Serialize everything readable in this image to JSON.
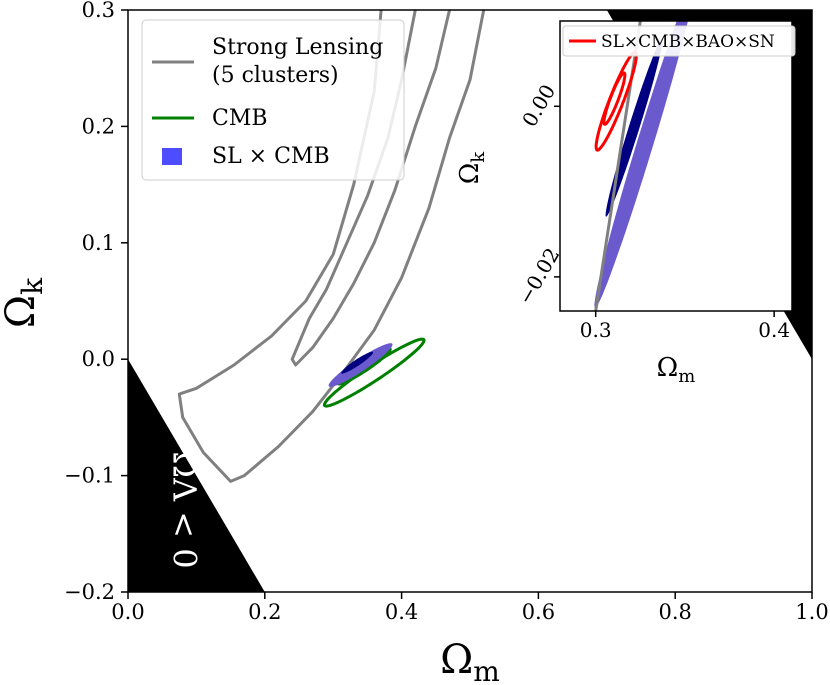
{
  "chart_data": [
    {
      "type": "contour",
      "title": "",
      "xlabel": "Ω",
      "xlabel_sub": "m",
      "ylabel": "Ω",
      "ylabel_sub": "k",
      "xlim": [
        0.0,
        1.0
      ],
      "ylim": [
        -0.2,
        0.3
      ],
      "xticks": [
        0.0,
        0.2,
        0.4,
        0.6,
        0.8,
        1.0
      ],
      "xtick_labels": [
        "0.0",
        "0.2",
        "0.4",
        "0.6",
        "0.8",
        "1.0"
      ],
      "yticks": [
        -0.2,
        -0.1,
        0.0,
        0.1,
        0.2,
        0.3
      ],
      "ytick_labels": [
        "−0.2",
        "−0.1",
        "0.0",
        "0.1",
        "0.2",
        "0.3"
      ],
      "legend": {
        "position": "top-left",
        "entries": [
          {
            "label_line1": "Strong Lensing",
            "label_line2": "(5 clusters)",
            "style": "line",
            "color": "#808080"
          },
          {
            "label": "CMB",
            "style": "line",
            "color": "#008000"
          },
          {
            "label": "SL × CMB",
            "style": "patch",
            "color": "#4d4dff"
          }
        ]
      },
      "annotation": {
        "text": "ΩΛ < 0",
        "region": "forbidden, lower-left corner"
      },
      "series": [
        {
          "name": "Strong Lensing outer contour",
          "color": "#808080",
          "points": [
            [
              0.37,
              0.3
            ],
            [
              0.36,
              0.23
            ],
            [
              0.33,
              0.15
            ],
            [
              0.3,
              0.09
            ],
            [
              0.26,
              0.05
            ],
            [
              0.21,
              0.02
            ],
            [
              0.155,
              -0.005
            ],
            [
              0.1,
              -0.025
            ],
            [
              0.075,
              -0.03
            ],
            [
              0.08,
              -0.05
            ],
            [
              0.11,
              -0.08
            ],
            [
              0.15,
              -0.105
            ],
            [
              0.17,
              -0.1
            ],
            [
              0.22,
              -0.075
            ],
            [
              0.27,
              -0.045
            ],
            [
              0.31,
              -0.015
            ],
            [
              0.36,
              0.025
            ],
            [
              0.4,
              0.07
            ],
            [
              0.44,
              0.13
            ],
            [
              0.47,
              0.19
            ],
            [
              0.5,
              0.24
            ],
            [
              0.52,
              0.3
            ]
          ]
        },
        {
          "name": "Strong Lensing inner contour",
          "color": "#808080",
          "points": [
            [
              0.42,
              0.3
            ],
            [
              0.4,
              0.24
            ],
            [
              0.38,
              0.19
            ],
            [
              0.35,
              0.14
            ],
            [
              0.32,
              0.1
            ],
            [
              0.29,
              0.06
            ],
            [
              0.265,
              0.035
            ],
            [
              0.24,
              0.0
            ],
            [
              0.245,
              -0.005
            ],
            [
              0.27,
              0.01
            ],
            [
              0.3,
              0.035
            ],
            [
              0.33,
              0.065
            ],
            [
              0.36,
              0.1
            ],
            [
              0.39,
              0.145
            ],
            [
              0.42,
              0.2
            ],
            [
              0.45,
              0.25
            ],
            [
              0.47,
              0.3
            ]
          ]
        },
        {
          "name": "CMB outer contour",
          "color": "#008000",
          "ellipse": {
            "center": [
              0.36,
              -0.0115
            ],
            "semi_major": 0.078,
            "semi_minor": 0.0073,
            "angle_deg": 21
          }
        },
        {
          "name": "CMB inner contour",
          "color": "#008000",
          "ellipse": {
            "center": [
              0.345,
              -0.006
            ],
            "semi_major": 0.041,
            "semi_minor": 0.0045,
            "angle_deg": 21
          }
        },
        {
          "name": "SL × CMB 95%",
          "color": "#6a5acd",
          "ellipse": {
            "center": [
              0.34,
              -0.005
            ],
            "semi_major": 0.05,
            "semi_minor": 0.006,
            "angle_deg": 21
          }
        },
        {
          "name": "SL × CMB 68%",
          "color": "#000080",
          "ellipse": {
            "center": [
              0.335,
              -0.003
            ],
            "semi_major": 0.025,
            "semi_minor": 0.003,
            "angle_deg": 21
          }
        }
      ]
    },
    {
      "type": "contour",
      "title": "",
      "xlabel": "Ω",
      "xlabel_sub": "m",
      "ylabel": "Ω",
      "ylabel_sub": "k",
      "xlim": [
        0.28,
        0.41
      ],
      "ylim": [
        -0.024,
        0.01
      ],
      "xticks": [
        0.3,
        0.4
      ],
      "xtick_labels": [
        "0.3",
        "0.4"
      ],
      "yticks": [
        -0.02,
        0.0
      ],
      "ytick_labels": [
        "−0.02",
        "0.00"
      ],
      "legend": {
        "position": "top-right",
        "entries": [
          {
            "label": "SL×CMB×BAO×SN",
            "style": "line",
            "color": "#ff0000"
          }
        ]
      },
      "series": [
        {
          "name": "SL × CMB 95%",
          "color": "#6a5acd",
          "ellipse": {
            "center": [
              0.3275,
              -0.0045
            ],
            "semi_major": 0.034,
            "semi_minor": 0.0027,
            "angle_deg": 34
          }
        },
        {
          "name": "SL × CMB 68%",
          "color": "#000080",
          "ellipse": {
            "center": [
              0.3215,
              -0.0025
            ],
            "semi_major": 0.019,
            "semi_minor": 0.0017,
            "angle_deg": 33
          }
        },
        {
          "name": "Strong Lensing contour (zoom)",
          "color": "#808080",
          "points": [
            [
              0.325,
              0.01
            ],
            [
              0.3,
              -0.024
            ]
          ]
        },
        {
          "name": "SL×CMB×BAO×SN 95%",
          "color": "#ff0000",
          "ellipse": {
            "center": [
              0.3115,
              0.0006
            ],
            "semi_major": 0.0125,
            "semi_minor": 0.0019,
            "angle_deg": 26
          }
        },
        {
          "name": "SL×CMB×BAO×SN 68%",
          "color": "#ff0000",
          "ellipse": {
            "center": [
              0.3105,
              0.0009
            ],
            "semi_major": 0.0065,
            "semi_minor": 0.0011,
            "angle_deg": 26
          }
        }
      ]
    }
  ]
}
